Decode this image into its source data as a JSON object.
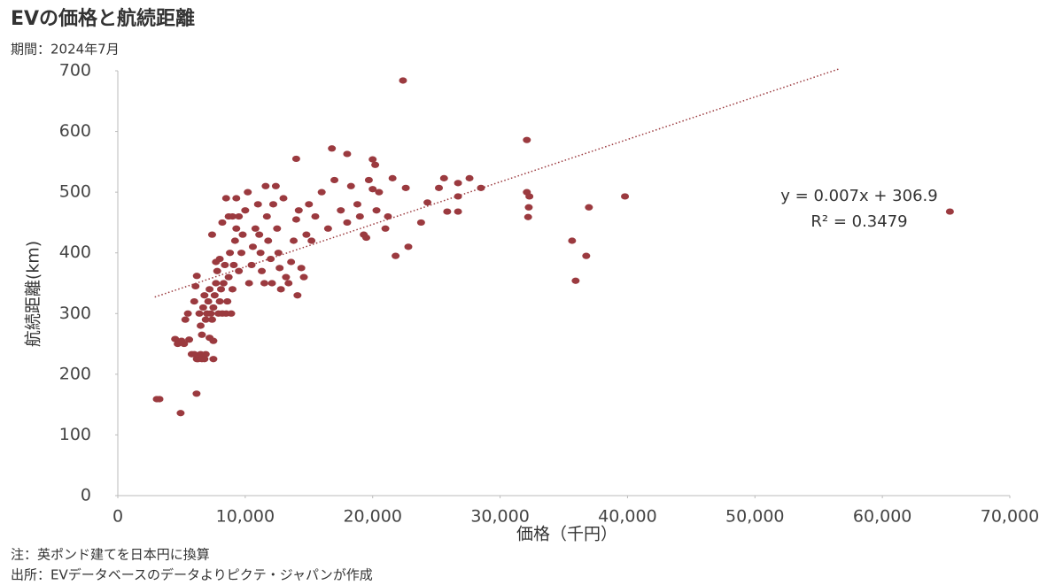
{
  "chart_data": {
    "type": "scatter",
    "title": "EVの価格と航続距離",
    "subtitle": "期間：2024年7月",
    "x_label": "価格（千円）",
    "y_label": "航続距離(km)",
    "notes": [
      "注：英ポンド建てを日本円に換算",
      "出所：EVデータベースのデータよりピクテ・ジャパンが作成"
    ],
    "color": "#9b3a3f",
    "x": [
      4500,
      4700,
      5000,
      5200,
      5300,
      5500,
      5600,
      5800,
      6000,
      6200,
      6300,
      6500,
      6600,
      6800,
      6900,
      7500,
      6000,
      6100,
      6200,
      6400,
      6500,
      6600,
      6700,
      6800,
      6900,
      7000,
      7100,
      7200,
      7300,
      7400,
      7500,
      7600,
      7700,
      7800,
      7900,
      8000,
      8100,
      8200,
      8300,
      8400,
      8500,
      8600,
      8700,
      8800,
      8900,
      9000,
      9100,
      9200,
      9300,
      9500,
      7200,
      7500,
      7400,
      7700,
      8000,
      8200,
      8500,
      8700,
      9000,
      9300,
      9500,
      9700,
      9800,
      10000,
      10200,
      10300,
      10500,
      10600,
      10800,
      11000,
      11100,
      11200,
      11300,
      11500,
      11600,
      11700,
      11800,
      12000,
      12100,
      12200,
      12400,
      12500,
      12600,
      12700,
      12800,
      13000,
      13200,
      13400,
      13600,
      13800,
      14000,
      14100,
      14200,
      14400,
      14600,
      14800,
      15000,
      15200,
      15500,
      16000,
      16500,
      17000,
      17500,
      18000,
      18300,
      18800,
      19000,
      19300,
      19500,
      19700,
      20000,
      20200,
      20300,
      20500,
      21000,
      21200,
      14000,
      16800,
      18000,
      20000,
      21560,
      22600,
      23800,
      24300,
      25200,
      25600,
      25850,
      26700,
      26700,
      26700,
      27600,
      28500,
      21800,
      22800,
      22380,
      32100,
      32100,
      32300,
      32250,
      32200,
      35650,
      35930,
      36760,
      36970,
      39800,
      65300,
      3060,
      3270,
      4930,
      6180
    ],
    "values": [
      258,
      250,
      255,
      250,
      290,
      300,
      257,
      233,
      233,
      225,
      225,
      233,
      225,
      225,
      233,
      225,
      320,
      345,
      362,
      300,
      280,
      265,
      310,
      330,
      290,
      300,
      320,
      340,
      300,
      290,
      310,
      330,
      350,
      370,
      300,
      320,
      340,
      300,
      350,
      380,
      300,
      320,
      360,
      400,
      300,
      340,
      380,
      420,
      440,
      460,
      260,
      255,
      430,
      385,
      390,
      450,
      490,
      460,
      460,
      490,
      370,
      400,
      430,
      470,
      500,
      350,
      380,
      410,
      440,
      480,
      430,
      400,
      370,
      350,
      510,
      460,
      420,
      390,
      350,
      480,
      510,
      440,
      400,
      375,
      340,
      490,
      360,
      350,
      385,
      420,
      455,
      330,
      470,
      375,
      360,
      430,
      480,
      420,
      460,
      500,
      440,
      520,
      470,
      450,
      510,
      480,
      460,
      430,
      425,
      520,
      505,
      545,
      470,
      500,
      440,
      460,
      555,
      572,
      563,
      554,
      523,
      507,
      450,
      483,
      507,
      523,
      468,
      515,
      493,
      468,
      523,
      507,
      395,
      410,
      684,
      586,
      500,
      493,
      475,
      459,
      420,
      354,
      395,
      475,
      493,
      468,
      159,
      159,
      136,
      168
    ],
    "trendline": {
      "equation_label": "y = 0.007x + 306.9",
      "r2_label": "R² = 0.3479",
      "slope": 0.007,
      "intercept": 306.9,
      "x_range": [
        2900,
        56600
      ]
    },
    "xlim": [
      0,
      70000
    ],
    "ylim": [
      0,
      700
    ],
    "xticks": [
      0,
      {
        "value": 10000,
        "label": "10,000"
      },
      {
        "value": 20000,
        "label": "20,000"
      },
      {
        "value": 30000,
        "label": "30,000"
      },
      {
        "value": 40000,
        "label": "40,000"
      },
      {
        "value": 50000,
        "label": "50,000"
      },
      {
        "value": 60000,
        "label": "60,000"
      },
      {
        "value": 70000,
        "label": "70,000"
      }
    ],
    "yticks": [
      0,
      100,
      200,
      300,
      400,
      500,
      600,
      700
    ]
  }
}
